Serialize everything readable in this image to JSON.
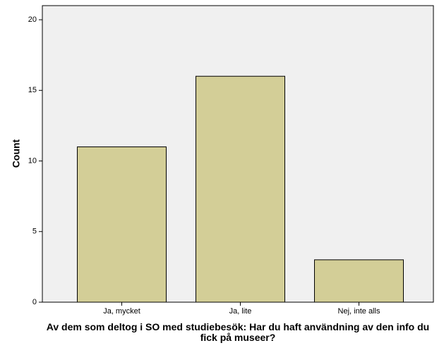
{
  "chart_data": {
    "type": "bar",
    "x_label": "Av dem som deltog i SO med studiebesök: Har du haft användning av den info du fick på museer?",
    "y_label": "Count",
    "categories": [
      "Ja, mycket",
      "Ja, lite",
      "Nej, inte alls"
    ],
    "values": [
      11,
      16,
      3
    ],
    "color": "#d3ce97",
    "ylim": [
      0,
      21
    ],
    "yticks": [
      0,
      5,
      10,
      15,
      20
    ]
  }
}
